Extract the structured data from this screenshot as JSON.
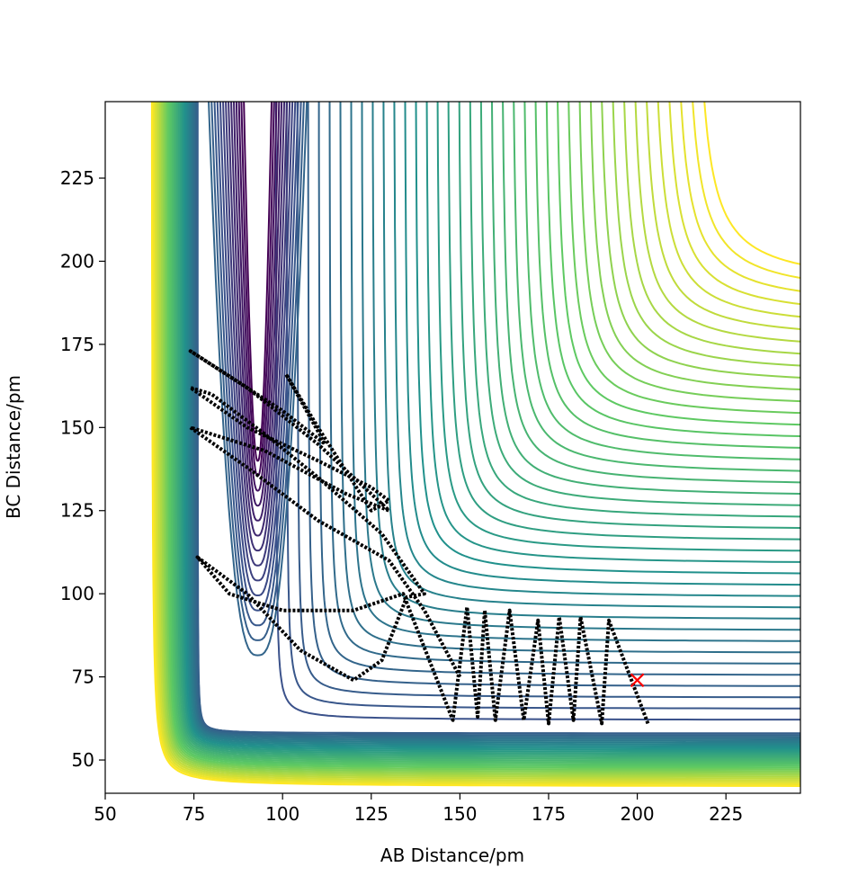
{
  "chart_data": {
    "type": "line",
    "xlabel": "AB Distance/pm",
    "ylabel": "BC Distance/pm",
    "xlim": [
      50,
      246
    ],
    "ylim": [
      40,
      248
    ],
    "xticks": [
      50,
      75,
      100,
      125,
      150,
      175,
      200,
      225
    ],
    "yticks": [
      50,
      75,
      100,
      125,
      150,
      175,
      200,
      225
    ],
    "series": [
      {
        "color": "#000000",
        "x": [
          203,
          192,
          190,
          184,
          182,
          178,
          175,
          172,
          168,
          164,
          160,
          157,
          155,
          152,
          148,
          134,
          120,
          100,
          85,
          76,
          90,
          105,
          120,
          128,
          135,
          140,
          128,
          110,
          95,
          80,
          74,
          90,
          110,
          125,
          130,
          125,
          110,
          101,
          112,
          100,
          74,
          90,
          110,
          130,
          118,
          95,
          74,
          90,
          110,
          130,
          140,
          150
        ],
        "y": [
          61,
          92,
          61,
          93,
          62,
          93,
          61,
          92,
          62,
          95,
          62,
          95,
          63,
          96,
          62,
          100,
          95,
          95,
          100,
          111,
          100,
          83,
          74,
          80,
          99,
          100,
          118,
          135,
          148,
          160,
          162,
          150,
          140,
          132,
          128,
          125,
          150,
          166,
          145,
          155,
          173,
          162,
          145,
          125,
          130,
          143,
          150,
          138,
          122,
          110,
          95,
          75
        ]
      }
    ],
    "markers": [
      {
        "x": 200,
        "y": 74,
        "color": "#ff0000"
      }
    ]
  }
}
